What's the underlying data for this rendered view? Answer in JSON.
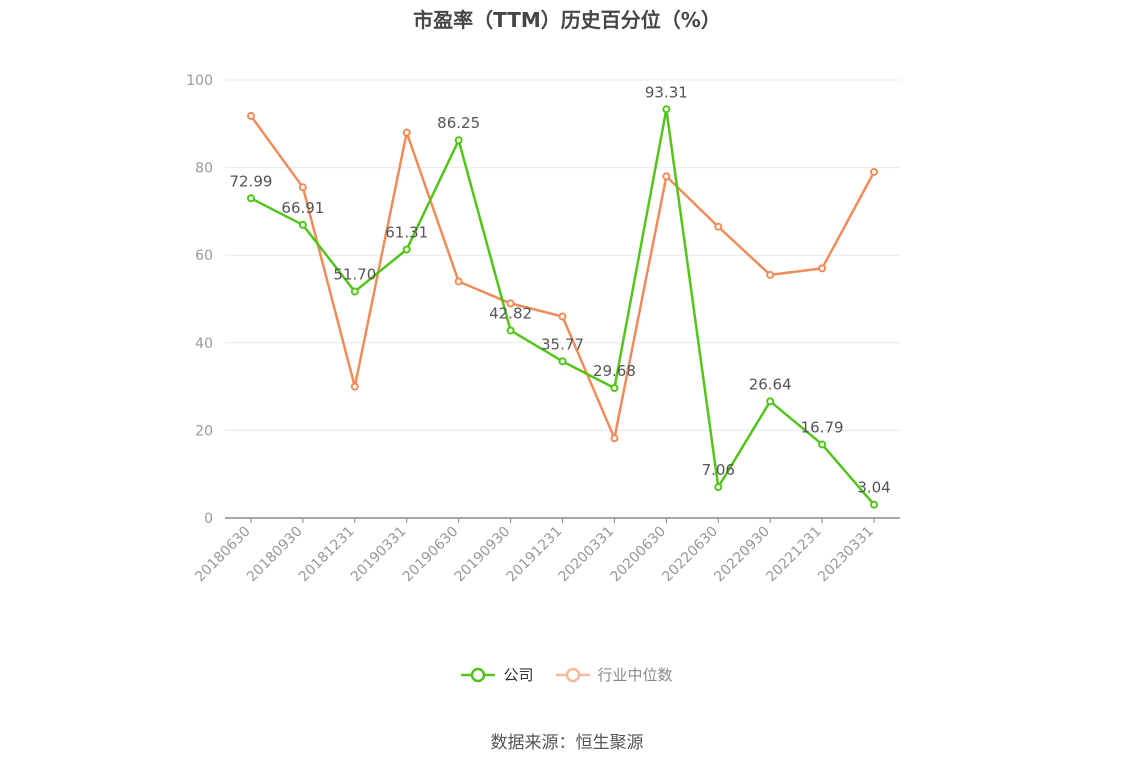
{
  "chart_data": {
    "type": "line",
    "title": "市盈率（TTM）历史百分位（%）",
    "categories": [
      "20180630",
      "20180930",
      "20181231",
      "20190331",
      "20190630",
      "20190930",
      "20191231",
      "20200331",
      "20200630",
      "20220630",
      "20220930",
      "20221231",
      "20230331"
    ],
    "ylim": [
      0,
      100
    ],
    "yticks": [
      0,
      20,
      40,
      60,
      80,
      100
    ],
    "grid": true,
    "legend_position": "bottom",
    "series": [
      {
        "name": "公司",
        "color": "#52c41a",
        "values": [
          72.99,
          66.91,
          51.7,
          61.31,
          86.25,
          42.82,
          35.77,
          29.68,
          93.31,
          7.06,
          26.64,
          16.79,
          3.04
        ],
        "labels": [
          "72.99",
          "66.91",
          "51.70",
          "61.31",
          "86.25",
          "42.82",
          "35.77",
          "29.68",
          "93.31",
          "7.06",
          "26.64",
          "16.79",
          "3.04"
        ]
      },
      {
        "name": "行业中位数",
        "color": "#f08c5a",
        "values": [
          91.8,
          75.5,
          30.0,
          88.0,
          54.0,
          49.0,
          46.0,
          18.2,
          78.0,
          66.5,
          55.5,
          57.0,
          79.0
        ]
      }
    ]
  },
  "legend": {
    "company_label": "公司",
    "industry_label": "行业中位数",
    "industry_icon_color": "#f6b99a"
  },
  "source": "数据来源：恒生聚源"
}
